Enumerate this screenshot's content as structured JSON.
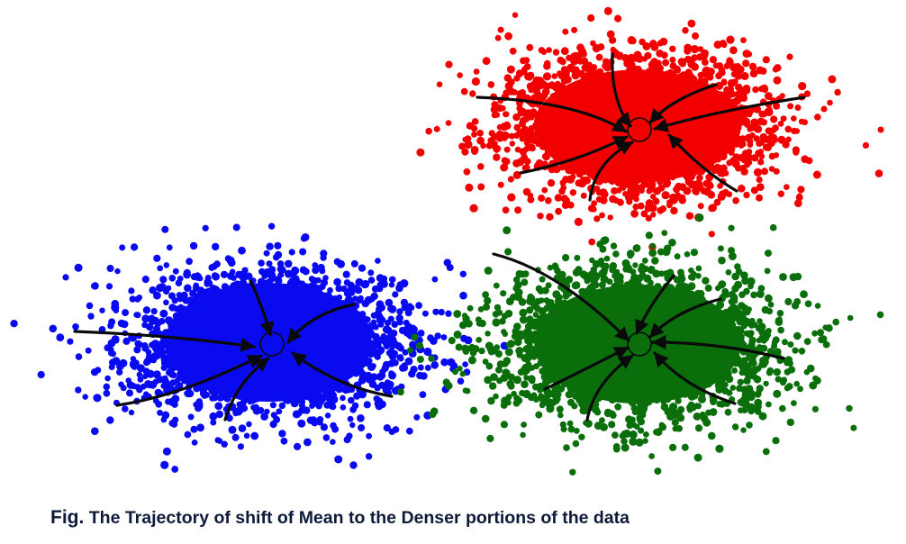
{
  "caption": {
    "prefix": "Fig.",
    "text": "The Trajectory of shift of Mean to the Denser portions of the data"
  },
  "clusters": [
    {
      "id": "red",
      "color": "#f20000"
    },
    {
      "id": "blue",
      "color": "#0a0af0"
    },
    {
      "id": "green",
      "color": "#0a6e0a"
    }
  ],
  "trajectory_color": "#0a0a0a"
}
